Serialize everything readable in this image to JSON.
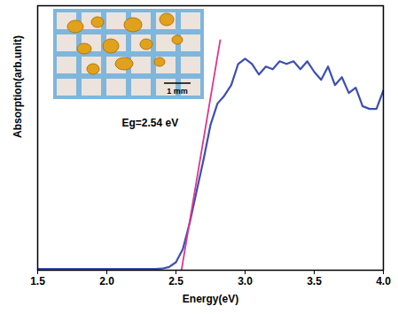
{
  "chart_data": {
    "type": "line",
    "xlabel": "Energy(eV)",
    "ylabel": "Absorption(arb.unit)",
    "annotation": "Eg=2.54 eV",
    "inset_scale_label": "1 mm",
    "xlim": [
      1.5,
      4.0
    ],
    "xticks": [
      {
        "value": 1.5,
        "label": "1.5"
      },
      {
        "value": 2.0,
        "label": "2.0"
      },
      {
        "value": 2.5,
        "label": "2.5"
      },
      {
        "value": 3.0,
        "label": "3.0"
      },
      {
        "value": 3.5,
        "label": "3.5"
      },
      {
        "value": 4.0,
        "label": "4.0"
      }
    ],
    "ylim": [
      0,
      100
    ],
    "tick_labels": "x",
    "grid": false,
    "series": [
      {
        "type": "line",
        "color": "#3d4fb0",
        "x": [
          1.5,
          1.55,
          1.6,
          1.65,
          1.7,
          1.75,
          1.8,
          1.85,
          1.9,
          1.95,
          2.0,
          2.05,
          2.1,
          2.15,
          2.2,
          2.25,
          2.3,
          2.35,
          2.4,
          2.45,
          2.5,
          2.55,
          2.6,
          2.65,
          2.7,
          2.75,
          2.8,
          2.85,
          2.9,
          2.95,
          3.0,
          3.05,
          3.1,
          3.15,
          3.2,
          3.25,
          3.3,
          3.35,
          3.4,
          3.45,
          3.5,
          3.55,
          3.6,
          3.65,
          3.7,
          3.75,
          3.8,
          3.85,
          3.9,
          3.95,
          4.0
        ],
        "values": [
          0.5,
          0.5,
          0.5,
          0.5,
          0.5,
          0.5,
          0.5,
          0.5,
          0.5,
          0.5,
          0.5,
          0.5,
          0.5,
          0.5,
          0.5,
          0.5,
          0.5,
          0.5,
          0.6,
          1.2,
          3,
          8,
          18,
          30,
          42,
          55,
          63,
          66,
          70,
          78,
          80,
          78,
          74,
          77,
          76,
          79,
          78,
          79,
          76,
          79,
          75,
          72,
          77,
          70,
          73,
          67,
          69,
          62,
          61,
          61,
          68
        ]
      },
      {
        "type": "line",
        "color": "#e0358f",
        "x": [
          2.54,
          2.82
        ],
        "values": [
          0,
          87
        ]
      }
    ]
  }
}
